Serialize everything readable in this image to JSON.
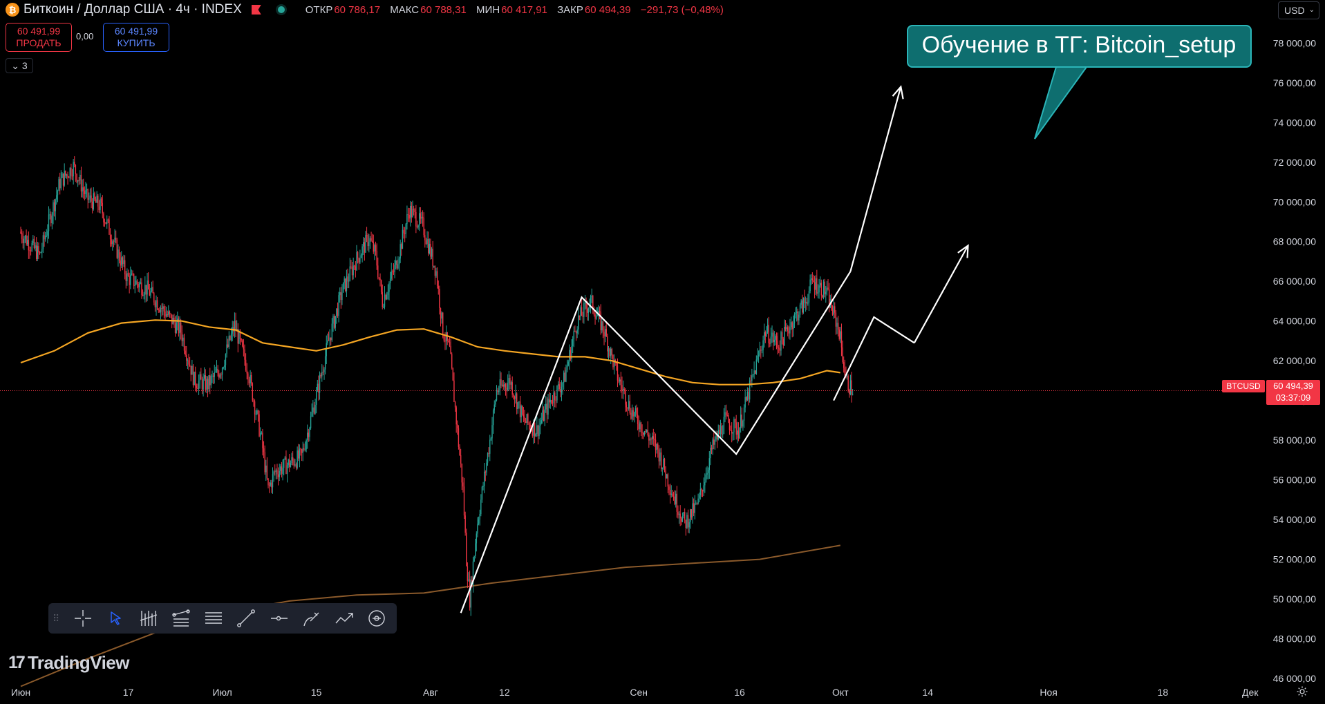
{
  "header": {
    "title": "Биткоин / Доллар США · 4ч · INDEX",
    "logo_glyph": "₿",
    "ohlc": [
      {
        "key": "ОТКР",
        "value": "60 786,17"
      },
      {
        "key": "МАКС",
        "value": "60 788,31"
      },
      {
        "key": "МИН",
        "value": "60 417,91"
      },
      {
        "key": "ЗАКР",
        "value": "60 494,39"
      }
    ],
    "change": "−291,73 (−0,48%)"
  },
  "trade": {
    "sell_price": "60 491,99",
    "sell_label": "ПРОДАТЬ",
    "spread": "0,00",
    "buy_price": "60 491,99",
    "buy_label": "КУПИТЬ"
  },
  "indicators_count": "3",
  "currency": "USD",
  "branding": {
    "logo_text": "TradingView"
  },
  "annotation": {
    "text": "Обучение в ТГ: Bitcoin_setup",
    "bg_color": "#0e6e6f",
    "border_color": "#2bb5b8"
  },
  "price_label": {
    "symbol": "BTCUSD",
    "price": "60 494,39",
    "countdown": "03:37:09"
  },
  "colors": {
    "up": "#26a69a",
    "down": "#f23645",
    "ma_short": "#f5a623",
    "ma_long": "#8b5a2b",
    "drawing": "#ffffff",
    "last_price": "#f23645"
  },
  "toolbar": {
    "icons": [
      "crosshair-icon",
      "cursor-icon",
      "fib-retracement-icon",
      "fib-channel-icon",
      "horizontal-lines-icon",
      "trend-line-icon",
      "horizontal-ray-icon",
      "brush-icon",
      "path-icon",
      "circle-target-icon"
    ]
  },
  "chart_data": {
    "type": "candlestick",
    "symbol": "BTCUSD",
    "timeframe": "4ч",
    "y_range": [
      45000,
      80000
    ],
    "y_ticks": [
      {
        "value": 46000,
        "label": "46 000,00"
      },
      {
        "value": 48000,
        "label": "48 000,00"
      },
      {
        "value": 50000,
        "label": "50 000,00"
      },
      {
        "value": 52000,
        "label": "52 000,00"
      },
      {
        "value": 54000,
        "label": "54 000,00"
      },
      {
        "value": 56000,
        "label": "56 000,00"
      },
      {
        "value": 58000,
        "label": "58 000,00"
      },
      {
        "value": 60000,
        "label": "60 000,00"
      },
      {
        "value": 62000,
        "label": "62 000,00"
      },
      {
        "value": 64000,
        "label": "64 000,00"
      },
      {
        "value": 66000,
        "label": "66 000,00"
      },
      {
        "value": 68000,
        "label": "68 000,00"
      },
      {
        "value": 70000,
        "label": "70 000,00"
      },
      {
        "value": 72000,
        "label": "72 000,00"
      },
      {
        "value": 74000,
        "label": "74 000,00"
      },
      {
        "value": 76000,
        "label": "76 000,00"
      },
      {
        "value": 78000,
        "label": "78 000,00"
      }
    ],
    "x_range": [
      0,
      194
    ],
    "x_ticks": [
      {
        "day": 0,
        "label": "Июн"
      },
      {
        "day": 16,
        "label": "17"
      },
      {
        "day": 30,
        "label": "Июл"
      },
      {
        "day": 44,
        "label": "15"
      },
      {
        "day": 61,
        "label": "Авг"
      },
      {
        "day": 72,
        "label": "12"
      },
      {
        "day": 92,
        "label": "Сен"
      },
      {
        "day": 107,
        "label": "16"
      },
      {
        "day": 122,
        "label": "Окт"
      },
      {
        "day": 135,
        "label": "14"
      },
      {
        "day": 153,
        "label": "Ноя"
      },
      {
        "day": 170,
        "label": "18"
      },
      {
        "day": 183,
        "label": "Дек"
      }
    ],
    "price_path": [
      [
        0,
        68500
      ],
      [
        3,
        67300
      ],
      [
        6,
        71000
      ],
      [
        8,
        71800
      ],
      [
        10,
        70200
      ],
      [
        12,
        69800
      ],
      [
        14,
        68000
      ],
      [
        16,
        66200
      ],
      [
        19,
        65600
      ],
      [
        22,
        64300
      ],
      [
        24,
        63500
      ],
      [
        26,
        61000
      ],
      [
        28,
        60800
      ],
      [
        30,
        61600
      ],
      [
        32,
        63800
      ],
      [
        34,
        61500
      ],
      [
        36,
        58000
      ],
      [
        37,
        55500
      ],
      [
        38,
        56400
      ],
      [
        40,
        56800
      ],
      [
        42,
        57200
      ],
      [
        44,
        60000
      ],
      [
        46,
        63000
      ],
      [
        48,
        65500
      ],
      [
        50,
        67000
      ],
      [
        52,
        68200
      ],
      [
        53,
        67300
      ],
      [
        54,
        65000
      ],
      [
        56,
        66800
      ],
      [
        58,
        69600
      ],
      [
        60,
        68800
      ],
      [
        62,
        66500
      ],
      [
        63,
        63500
      ],
      [
        64,
        62500
      ],
      [
        65,
        59000
      ],
      [
        66,
        55500
      ],
      [
        66.5,
        52000
      ],
      [
        67,
        50000
      ],
      [
        68,
        53500
      ],
      [
        70,
        58000
      ],
      [
        71,
        60500
      ],
      [
        73,
        61000
      ],
      [
        75,
        59000
      ],
      [
        77,
        58500
      ],
      [
        79,
        60000
      ],
      [
        81,
        61000
      ],
      [
        83,
        64000
      ],
      [
        85,
        65000
      ],
      [
        87,
        63500
      ],
      [
        89,
        61200
      ],
      [
        91,
        59500
      ],
      [
        93,
        58500
      ],
      [
        95,
        57500
      ],
      [
        97,
        55500
      ],
      [
        99,
        53800
      ],
      [
        101,
        54800
      ],
      [
        103,
        57500
      ],
      [
        105,
        59000
      ],
      [
        107,
        58500
      ],
      [
        109,
        61000
      ],
      [
        111,
        63500
      ],
      [
        113,
        62800
      ],
      [
        115,
        64000
      ],
      [
        117,
        65000
      ],
      [
        118,
        66000
      ],
      [
        120,
        65500
      ],
      [
        122,
        63500
      ],
      [
        123,
        61000
      ],
      [
        124,
        60494
      ]
    ],
    "series": [
      {
        "name": "MA short",
        "color": "#f5a623",
        "points": [
          [
            0,
            61900
          ],
          [
            5,
            62500
          ],
          [
            10,
            63400
          ],
          [
            15,
            63900
          ],
          [
            20,
            64050
          ],
          [
            24,
            64000
          ],
          [
            28,
            63700
          ],
          [
            32,
            63550
          ],
          [
            36,
            62900
          ],
          [
            40,
            62700
          ],
          [
            44,
            62500
          ],
          [
            48,
            62800
          ],
          [
            52,
            63200
          ],
          [
            56,
            63550
          ],
          [
            60,
            63600
          ],
          [
            64,
            63200
          ],
          [
            68,
            62700
          ],
          [
            72,
            62500
          ],
          [
            76,
            62350
          ],
          [
            80,
            62200
          ],
          [
            84,
            62200
          ],
          [
            88,
            62000
          ],
          [
            92,
            61600
          ],
          [
            96,
            61200
          ],
          [
            100,
            60900
          ],
          [
            104,
            60800
          ],
          [
            108,
            60800
          ],
          [
            112,
            60900
          ],
          [
            116,
            61100
          ],
          [
            120,
            61500
          ],
          [
            122,
            61400
          ]
        ]
      },
      {
        "name": "MA long",
        "color": "#8b5a2b",
        "points": [
          [
            0,
            45600
          ],
          [
            10,
            47000
          ],
          [
            20,
            48300
          ],
          [
            30,
            49300
          ],
          [
            40,
            49900
          ],
          [
            50,
            50200
          ],
          [
            60,
            50300
          ],
          [
            70,
            50800
          ],
          [
            80,
            51200
          ],
          [
            90,
            51600
          ],
          [
            100,
            51800
          ],
          [
            110,
            52000
          ],
          [
            122,
            52700
          ]
        ]
      }
    ],
    "drawings": [
      {
        "type": "polyline",
        "points": [
          [
            65.5,
            49300
          ],
          [
            83.5,
            65200
          ],
          [
            106.5,
            57300
          ],
          [
            123.5,
            66500
          ]
        ]
      },
      {
        "type": "arrow",
        "points": [
          [
            123.5,
            66500
          ],
          [
            131,
            75800
          ]
        ]
      },
      {
        "type": "polyline",
        "points": [
          [
            121,
            60000
          ],
          [
            127,
            64200
          ],
          [
            133,
            62900
          ]
        ]
      },
      {
        "type": "arrow",
        "points": [
          [
            133,
            62900
          ],
          [
            141,
            67800
          ]
        ]
      }
    ],
    "last_price": 60494.39
  }
}
